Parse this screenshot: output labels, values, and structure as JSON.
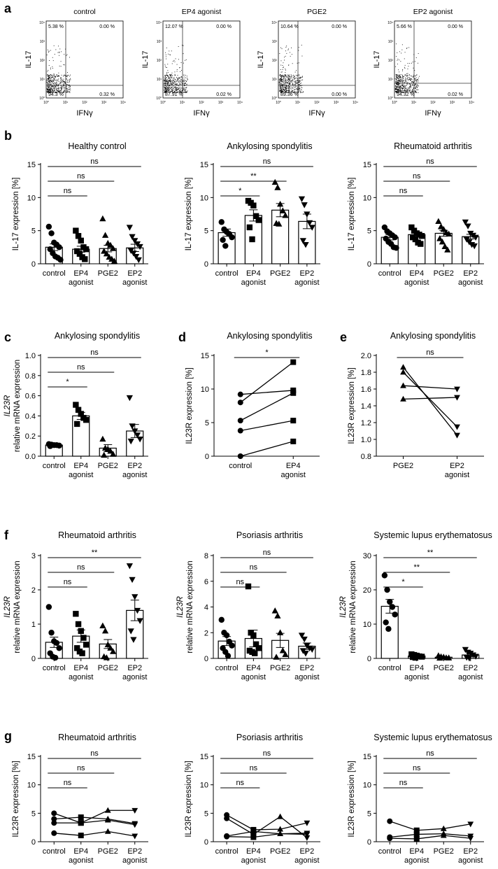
{
  "chart_data": {
    "panel_labels": {
      "a": "a",
      "b": "b",
      "c": "c",
      "d": "d",
      "e": "e",
      "f": "f",
      "g": "g"
    },
    "flow_panels": [
      {
        "title": "control",
        "q_ul": "5.38 %",
        "q_ur": "0.00 %",
        "q_ll": "94.3 %",
        "q_lr": "0.32 %",
        "ylabel": "IL-17",
        "xlabel": "IFNγ"
      },
      {
        "title": "EP4 agonist",
        "q_ul": "12.07 %",
        "q_ur": "0.00 %",
        "q_ll": "87.91 %",
        "q_lr": "0.02 %",
        "ylabel": "IL-17",
        "xlabel": "IFNγ"
      },
      {
        "title": "PGE2",
        "q_ul": "10.64 %",
        "q_ur": "0.00 %",
        "q_ll": "89.36 %",
        "q_lr": "0.00 %",
        "ylabel": "IL-17",
        "xlabel": "IFNγ"
      },
      {
        "title": "EP2 agonist",
        "q_ul": "5.66 %",
        "q_ur": "0.00 %",
        "q_ll": "94.32 %",
        "q_lr": "0.02 %",
        "ylabel": "IL-17",
        "xlabel": "IFNγ"
      }
    ],
    "flow_axis_ticks": {
      "y": [
        "10⁴",
        "10³",
        "10²",
        "10¹",
        "10⁰"
      ],
      "x": [
        "10⁰",
        "10¹",
        "10²",
        "10³",
        "10⁴"
      ]
    },
    "bar_panels": [
      {
        "type": "bar",
        "title": "Healthy control",
        "ylabel": "IL-17  expression [%]",
        "ylim": [
          0,
          15
        ],
        "yticks": [
          "0",
          "5",
          "10",
          "15"
        ],
        "categories": [
          "control",
          "EP4\nagonist",
          "PGE2",
          "EP2\nagonist"
        ],
        "means": [
          2.5,
          2.2,
          2.3,
          2.4
        ],
        "sem": [
          0.5,
          0.45,
          0.5,
          0.55
        ],
        "points": [
          [
            5.6,
            4.6,
            3.2,
            2.9,
            2.5,
            2.2,
            1.6,
            1.1,
            0.9,
            0.6
          ],
          [
            5.0,
            4.2,
            3.5,
            2.5,
            2.2,
            1.9,
            1.5,
            1.0,
            0.7
          ],
          [
            6.8,
            4.3,
            3.1,
            2.8,
            2.3,
            1.9,
            1.5,
            1.0,
            0.7,
            0.4
          ],
          [
            5.5,
            4.1,
            3.5,
            3.0,
            2.6,
            2.0,
            1.6,
            1.1,
            0.6
          ]
        ],
        "comparisons": [
          {
            "from": 0,
            "to": 1,
            "label": "ns"
          },
          {
            "from": 0,
            "to": 2,
            "label": "ns"
          },
          {
            "from": 0,
            "to": 3,
            "label": "ns"
          }
        ]
      },
      {
        "type": "bar",
        "title": "Ankylosing spondylitis",
        "ylabel": "IL-17  expression [%]",
        "ylim": [
          0,
          15
        ],
        "yticks": [
          "0",
          "5",
          "10",
          "15"
        ],
        "categories": [
          "control",
          "EP4\nagonist",
          "PGE2",
          "EP2\nagonist"
        ],
        "means": [
          4.7,
          7.3,
          8.1,
          6.4
        ],
        "sem": [
          0.55,
          0.85,
          1.0,
          1.1
        ],
        "points": [
          [
            6.3,
            5.2,
            4.8,
            4.5,
            4.0,
            3.6,
            2.7
          ],
          [
            9.5,
            9.2,
            8.8,
            7.2,
            6.6,
            5.5,
            3.7
          ],
          [
            12.3,
            11.5,
            9.0,
            8.0,
            7.3,
            6.1,
            6.0
          ],
          [
            9.8,
            8.9,
            7.5,
            6.2,
            5.5,
            3.5,
            2.9
          ]
        ],
        "comparisons": [
          {
            "from": 0,
            "to": 1,
            "label": "*"
          },
          {
            "from": 0,
            "to": 2,
            "label": "**"
          },
          {
            "from": 0,
            "to": 3,
            "label": "ns"
          }
        ]
      },
      {
        "type": "bar",
        "title": "Rheumatoid arthritis",
        "ylabel": "IL-17  expression [%]",
        "ylim": [
          0,
          15
        ],
        "yticks": [
          "0",
          "5",
          "10",
          "15"
        ],
        "categories": [
          "control",
          "EP4\nagonist",
          "PGE2",
          "EP2\nagonist"
        ],
        "means": [
          4.0,
          4.4,
          4.6,
          4.1
        ],
        "sem": [
          0.4,
          0.35,
          0.45,
          0.35
        ],
        "points": [
          [
            5.5,
            4.9,
            4.6,
            4.3,
            4.0,
            3.8,
            3.3,
            3.0,
            2.5,
            2.4
          ],
          [
            5.5,
            5.0,
            4.6,
            4.4,
            4.2,
            4.0,
            3.7,
            3.2,
            3.0
          ],
          [
            6.4,
            5.6,
            5.2,
            4.7,
            4.5,
            3.8,
            3.3,
            2.6,
            2.1
          ],
          [
            6.3,
            5.7,
            4.6,
            4.3,
            4.0,
            3.7,
            3.3,
            2.9,
            2.7
          ]
        ],
        "comparisons": [
          {
            "from": 0,
            "to": 1,
            "label": "ns"
          },
          {
            "from": 0,
            "to": 2,
            "label": "ns"
          },
          {
            "from": 0,
            "to": 3,
            "label": "ns"
          }
        ]
      },
      {
        "type": "bar",
        "title": "Ankylosing spondylitis",
        "ylabel_italic": "IL23R",
        "ylabel": "relative mRNA expression",
        "ylim": [
          0,
          1.0
        ],
        "yticks": [
          "0.0",
          "0.2",
          "0.4",
          "0.6",
          "0.8",
          "1.0"
        ],
        "categories": [
          "control",
          "EP4\nagonist",
          "PGE2",
          "EP2\nagonist"
        ],
        "means": [
          0.11,
          0.4,
          0.08,
          0.25
        ],
        "sem": [
          0.005,
          0.035,
          0.035,
          0.065
        ],
        "points": [
          [
            0.12,
            0.115,
            0.11,
            0.11,
            0.105,
            0.1
          ],
          [
            0.51,
            0.46,
            0.42,
            0.38,
            0.36,
            0.32
          ],
          [
            0.17,
            0.08,
            0.07,
            0.05,
            0.02,
            0.01
          ],
          [
            0.58,
            0.3,
            0.25,
            0.21,
            0.17,
            0.15
          ]
        ],
        "comparisons": [
          {
            "from": 0,
            "to": 1,
            "label": "*"
          },
          {
            "from": 0,
            "to": 2,
            "label": "ns"
          },
          {
            "from": 0,
            "to": 3,
            "label": "ns"
          }
        ]
      },
      {
        "type": "bar",
        "title": "Rheumatoid arthritis",
        "ylabel_italic": "IL23R",
        "ylabel": "relative mRNA expression",
        "ylim": [
          0,
          3
        ],
        "yticks": [
          "0",
          "1",
          "2",
          "3"
        ],
        "categories": [
          "control",
          "EP4\nagonist",
          "PGE2",
          "EP2\nagonist"
        ],
        "means": [
          0.47,
          0.65,
          0.42,
          1.4
        ],
        "sem": [
          0.15,
          0.18,
          0.13,
          0.3
        ],
        "points": [
          [
            1.5,
            0.75,
            0.5,
            0.45,
            0.3,
            0.15,
            0.05,
            0.02
          ],
          [
            1.3,
            1.0,
            0.8,
            0.6,
            0.4,
            0.3,
            0.2,
            0.15
          ],
          [
            0.95,
            0.8,
            0.4,
            0.3,
            0.2,
            0.05,
            0.02
          ],
          [
            2.7,
            2.3,
            1.8,
            1.4,
            1.1,
            0.8,
            0.55
          ]
        ],
        "comparisons": [
          {
            "from": 0,
            "to": 1,
            "label": "ns"
          },
          {
            "from": 0,
            "to": 2,
            "label": "ns"
          },
          {
            "from": 0,
            "to": 3,
            "label": "**"
          }
        ]
      },
      {
        "type": "bar",
        "title": "Psoriasis arthritis",
        "ylabel_italic": "IL23R",
        "ylabel": "relative mRNA expression",
        "ylim": [
          0,
          8
        ],
        "yticks": [
          "0",
          "2",
          "4",
          "6",
          "8"
        ],
        "categories": [
          "control",
          "EP4\nagonist",
          "PGE2",
          "EP2\nagonist"
        ],
        "means": [
          1.35,
          1.55,
          1.4,
          0.95
        ],
        "sem": [
          0.35,
          0.65,
          0.55,
          0.25
        ],
        "points": [
          [
            3.0,
            2.0,
            1.8,
            1.3,
            1.0,
            0.8,
            0.5,
            0.2
          ],
          [
            5.6,
            2.0,
            1.8,
            1.1,
            0.8,
            0.6,
            0.5,
            0.4
          ],
          [
            3.7,
            3.3,
            2.0,
            0.6,
            0.3,
            0.1
          ],
          [
            1.8,
            1.5,
            1.0,
            0.8,
            0.7,
            0.6,
            0.4
          ]
        ],
        "comparisons": [
          {
            "from": 0,
            "to": 1,
            "label": "ns"
          },
          {
            "from": 0,
            "to": 2,
            "label": "ns"
          },
          {
            "from": 0,
            "to": 3,
            "label": "ns"
          }
        ]
      },
      {
        "type": "bar",
        "title": "Systemic lupus erythematosus",
        "ylabel_italic": "IL23R",
        "ylabel": "relative mRNA expression",
        "ylim": [
          0,
          30
        ],
        "yticks": [
          "0",
          "10",
          "20",
          "30"
        ],
        "categories": [
          "control",
          "EP4\nagonist",
          "PGE2",
          "EP2\nagonist"
        ],
        "means": [
          15.2,
          0.7,
          0.35,
          1.0
        ],
        "sem": [
          2.0,
          0.2,
          0.15,
          0.4
        ],
        "points": [
          [
            24.2,
            20.0,
            16.5,
            15.0,
            12.8,
            10.5,
            8.6
          ],
          [
            1.2,
            1.0,
            0.8,
            0.6,
            0.5,
            0.4,
            0.2
          ],
          [
            0.8,
            0.5,
            0.4,
            0.2,
            0.15,
            0.1
          ],
          [
            2.6,
            1.8,
            1.5,
            1.0,
            0.6,
            0.3,
            0.1
          ]
        ],
        "comparisons": [
          {
            "from": 0,
            "to": 1,
            "label": "*"
          },
          {
            "from": 0,
            "to": 2,
            "label": "**"
          },
          {
            "from": 0,
            "to": 3,
            "label": "**"
          }
        ]
      }
    ],
    "paired_panels": [
      {
        "type": "line",
        "title": "Ankylosing spondylitis",
        "ylabel": "IL23R  expression [%]",
        "ylim": [
          0,
          15
        ],
        "yticks": [
          "0",
          "5",
          "10",
          "15"
        ],
        "categories": [
          "control",
          "EP4\nagonist"
        ],
        "marker_groups": [
          "circle",
          "square"
        ],
        "lines": [
          [
            9.2,
            9.8
          ],
          [
            8.0,
            14.0
          ],
          [
            5.3,
            9.4
          ],
          [
            3.8,
            5.3
          ],
          [
            0.0,
            2.2
          ]
        ],
        "comparisons": [
          {
            "from": 0,
            "to": 1,
            "label": "*"
          }
        ]
      },
      {
        "type": "line",
        "title": "Ankylosing spondylitis",
        "ylabel": "IL23R  expression [%]",
        "ylim": [
          0.8,
          2.0
        ],
        "yticks": [
          "0.8",
          "1.0",
          "1.2",
          "1.4",
          "1.6",
          "1.8",
          "2.0"
        ],
        "categories": [
          "PGE2",
          "EP2\nagonist"
        ],
        "marker_groups": [
          "triangle",
          "triangle-down"
        ],
        "lines": [
          [
            1.86,
            1.05
          ],
          [
            1.8,
            1.15
          ],
          [
            1.64,
            1.6
          ],
          [
            1.48,
            1.5
          ]
        ],
        "comparisons": [
          {
            "from": 0,
            "to": 1,
            "label": "ns"
          }
        ]
      }
    ],
    "line_panels": [
      {
        "type": "line",
        "title": "Rheumatoid arthritis",
        "ylabel": "IL23R  expression [%]",
        "ylim": [
          0,
          15
        ],
        "yticks": [
          "0",
          "5",
          "10",
          "15"
        ],
        "categories": [
          "control",
          "EP4\nagonist",
          "PGE2",
          "EP2\nagonist"
        ],
        "marker_groups": [
          "circle",
          "square",
          "triangle",
          "triangle-down"
        ],
        "lines": [
          [
            5.0,
            3.3,
            5.5,
            5.5
          ],
          [
            4.0,
            4.3,
            4.0,
            3.2
          ],
          [
            3.3,
            3.3,
            3.8,
            3.0
          ],
          [
            1.5,
            1.1,
            1.8,
            1.0
          ]
        ],
        "comparisons": [
          {
            "from": 0,
            "to": 1,
            "label": "ns"
          },
          {
            "from": 0,
            "to": 2,
            "label": "ns"
          },
          {
            "from": 0,
            "to": 3,
            "label": "ns"
          }
        ]
      },
      {
        "type": "line",
        "title": "Psoriasis arthritis",
        "ylabel": "IL23R  expression [%]",
        "ylim": [
          0,
          15
        ],
        "yticks": [
          "0",
          "5",
          "10",
          "15"
        ],
        "categories": [
          "control",
          "EP4\nagonist",
          "PGE2",
          "EP2\nagonist"
        ],
        "marker_groups": [
          "circle",
          "square",
          "triangle",
          "triangle-down"
        ],
        "lines": [
          [
            4.7,
            2.1,
            2.2,
            3.3
          ],
          [
            4.1,
            1.3,
            4.4,
            0.7
          ],
          [
            1.0,
            1.8,
            1.4,
            1.5
          ],
          [
            0.9,
            0.8,
            1.4,
            1.3
          ]
        ],
        "comparisons": [
          {
            "from": 0,
            "to": 1,
            "label": "ns"
          },
          {
            "from": 0,
            "to": 2,
            "label": "ns"
          },
          {
            "from": 0,
            "to": 3,
            "label": "ns"
          }
        ]
      },
      {
        "type": "line",
        "title": "Systemic lupus erythematosus",
        "ylabel": "IL23R  expression [%]",
        "ylim": [
          0,
          15
        ],
        "yticks": [
          "0",
          "5",
          "10",
          "15"
        ],
        "categories": [
          "control",
          "EP4\nagonist",
          "PGE2",
          "EP2\nagonist"
        ],
        "marker_groups": [
          "circle",
          "square",
          "triangle",
          "triangle-down"
        ],
        "lines": [
          [
            3.6,
            2.0,
            2.3,
            3.1
          ],
          [
            0.8,
            1.3,
            1.4,
            1.0
          ],
          [
            0.6,
            0.5,
            1.1,
            0.6
          ]
        ],
        "comparisons": [
          {
            "from": 0,
            "to": 1,
            "label": "ns"
          },
          {
            "from": 0,
            "to": 2,
            "label": "ns"
          },
          {
            "from": 0,
            "to": 3,
            "label": "ns"
          }
        ]
      }
    ]
  }
}
